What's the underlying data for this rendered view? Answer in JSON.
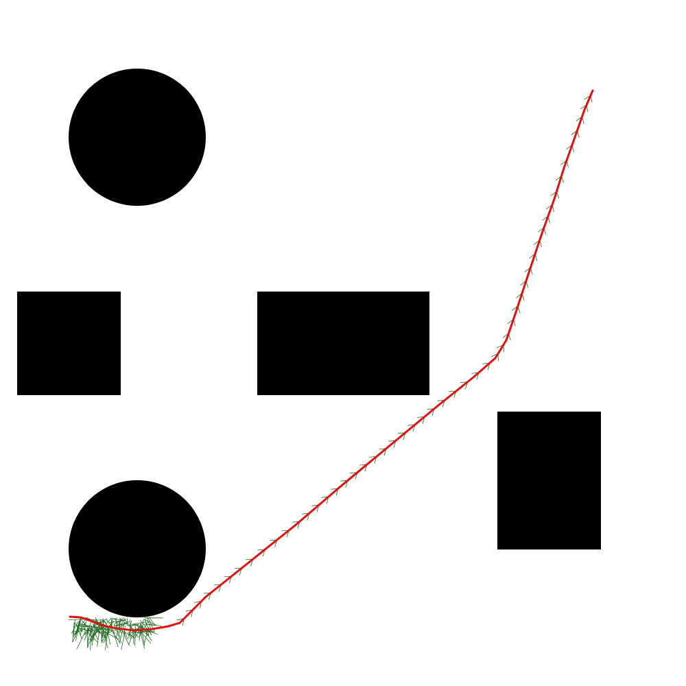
{
  "colors": {
    "background": "#ffffff",
    "obstacle": "#000000",
    "path": "#e01010",
    "tree": "#1f6b1f"
  },
  "obstacles": [
    {
      "id": "circle-top-left",
      "shape": "circle"
    },
    {
      "id": "square-left",
      "shape": "rectangle"
    },
    {
      "id": "rectangle-center",
      "shape": "rectangle"
    },
    {
      "id": "rectangle-right",
      "shape": "rectangle"
    },
    {
      "id": "circle-bottom-left",
      "shape": "circle"
    }
  ]
}
